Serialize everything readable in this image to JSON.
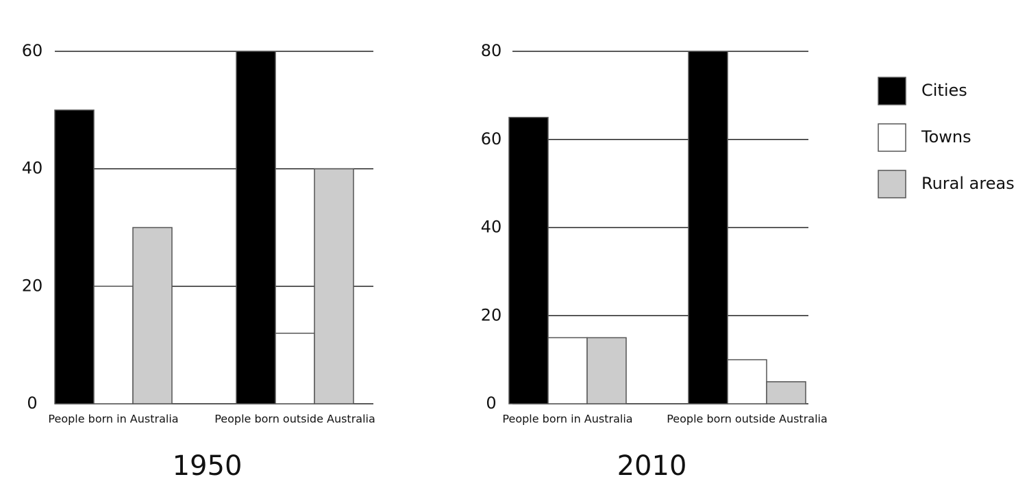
{
  "chart_data": [
    {
      "type": "bar",
      "title": "1950",
      "categories": [
        "People born in Australia",
        "People born outside Australia"
      ],
      "series": [
        {
          "name": "Cities",
          "color": "#000000",
          "values": [
            50,
            60
          ]
        },
        {
          "name": "Towns",
          "color": "#ffffff",
          "values": [
            20,
            12
          ]
        },
        {
          "name": "Rural areas",
          "color": "#cccccc",
          "values": [
            30,
            40
          ]
        }
      ],
      "ylim": [
        0,
        60
      ],
      "yticks": [
        0,
        20,
        40,
        60
      ],
      "grid": true
    },
    {
      "type": "bar",
      "title": "2010",
      "categories": [
        "People born in Australia",
        "People born outside Australia"
      ],
      "series": [
        {
          "color": "#000000",
          "values": [
            65,
            80
          ]
        },
        {
          "color": "#ffffff",
          "values": [
            15,
            10
          ]
        },
        {
          "color": "#cccccc",
          "values": [
            15,
            5
          ]
        }
      ],
      "ylim": [
        0,
        80
      ],
      "yticks": [
        0,
        20,
        40,
        60,
        80
      ],
      "grid": true
    }
  ]
}
